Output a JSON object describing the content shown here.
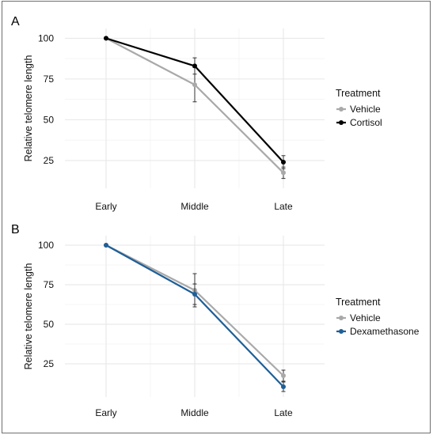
{
  "chart_data": [
    {
      "panel": "A",
      "type": "line",
      "categories": [
        "Early",
        "Middle",
        "Late"
      ],
      "ylabel": "Relative telomere length",
      "xlabel": "",
      "ylim": [
        8,
        106
      ],
      "yticks": [
        25,
        50,
        75,
        100
      ],
      "grid": true,
      "legend": {
        "title": "Treatment",
        "position": "right"
      },
      "series": [
        {
          "name": "Vehicle",
          "color": "#a9a9a9",
          "values": [
            100,
            71.5,
            17.5
          ],
          "error": [
            0,
            10.5,
            3.5
          ]
        },
        {
          "name": "Cortisol",
          "color": "#000000",
          "values": [
            100,
            83,
            24
          ],
          "error": [
            0,
            5,
            4
          ]
        }
      ]
    },
    {
      "panel": "B",
      "type": "line",
      "categories": [
        "Early",
        "Middle",
        "Late"
      ],
      "ylabel": "Relative telomere length",
      "xlabel": "",
      "ylim": [
        4,
        106
      ],
      "yticks": [
        25,
        50,
        75,
        100
      ],
      "grid": true,
      "legend": {
        "title": "Treatment",
        "position": "right"
      },
      "series": [
        {
          "name": "Vehicle",
          "color": "#a9a9a9",
          "values": [
            100,
            71.5,
            17.5
          ],
          "error": [
            0,
            10.5,
            3.5
          ]
        },
        {
          "name": "Dexamethasone",
          "color": "#1f5f97",
          "values": [
            100,
            69,
            10.5
          ],
          "error": [
            0,
            6.5,
            3
          ]
        }
      ]
    }
  ]
}
